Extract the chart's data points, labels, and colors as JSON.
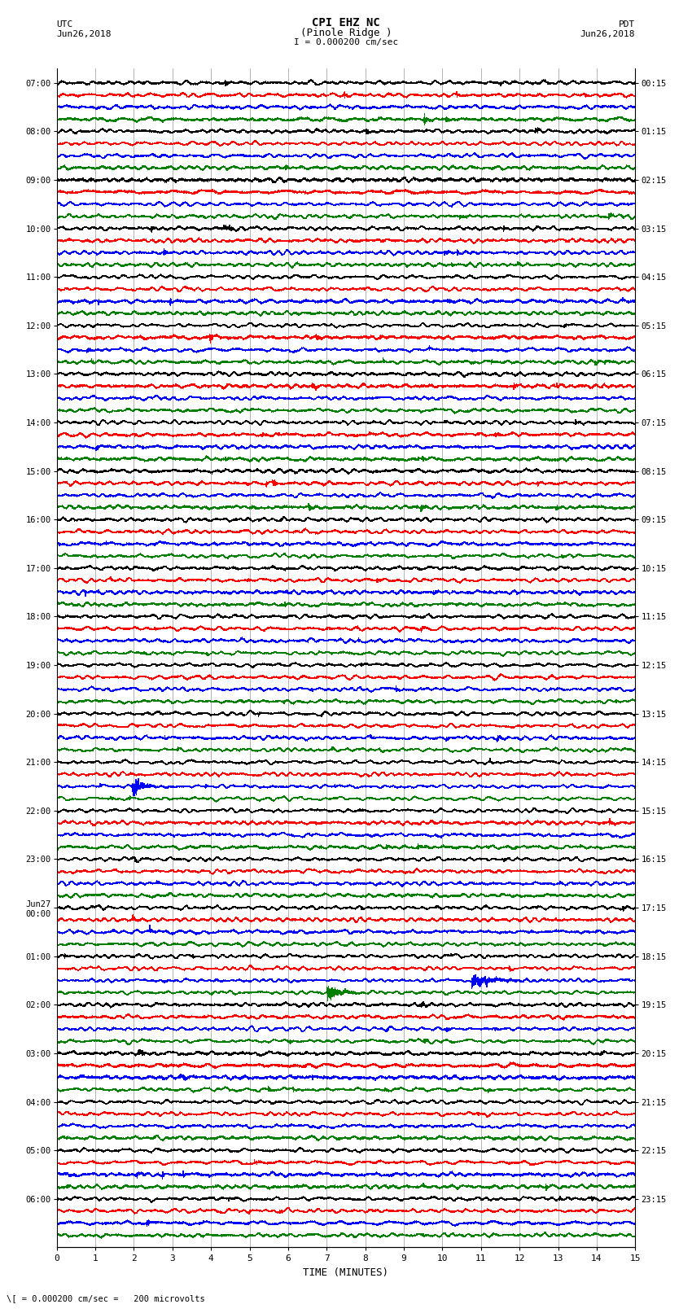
{
  "title_line1": "CPI EHZ NC",
  "title_line2": "(Pinole Ridge )",
  "scale_label": "I = 0.000200 cm/sec",
  "bottom_label": "\\[ = 0.000200 cm/sec =   200 microvolts",
  "utc_label1": "UTC",
  "utc_label2": "Jun26,2018",
  "pdt_label1": "PDT",
  "pdt_label2": "Jun26,2018",
  "xlabel": "TIME (MINUTES)",
  "left_times": [
    "07:00",
    "08:00",
    "09:00",
    "10:00",
    "11:00",
    "12:00",
    "13:00",
    "14:00",
    "15:00",
    "16:00",
    "17:00",
    "18:00",
    "19:00",
    "20:00",
    "21:00",
    "22:00",
    "23:00",
    "Jun27\n00:00",
    "01:00",
    "02:00",
    "03:00",
    "04:00",
    "05:00",
    "06:00"
  ],
  "right_times": [
    "00:15",
    "01:15",
    "02:15",
    "03:15",
    "04:15",
    "05:15",
    "06:15",
    "07:15",
    "08:15",
    "09:15",
    "10:15",
    "11:15",
    "12:15",
    "13:15",
    "14:15",
    "15:15",
    "16:15",
    "17:15",
    "18:15",
    "19:15",
    "20:15",
    "21:15",
    "22:15",
    "23:15"
  ],
  "colors": [
    "black",
    "red",
    "blue",
    "green"
  ],
  "n_traces_per_hour": 4,
  "n_hours": 24,
  "minutes": 15,
  "bg_color": "white",
  "grid_color": "#999999",
  "fig_width": 8.5,
  "fig_height": 16.13,
  "dpi": 100
}
